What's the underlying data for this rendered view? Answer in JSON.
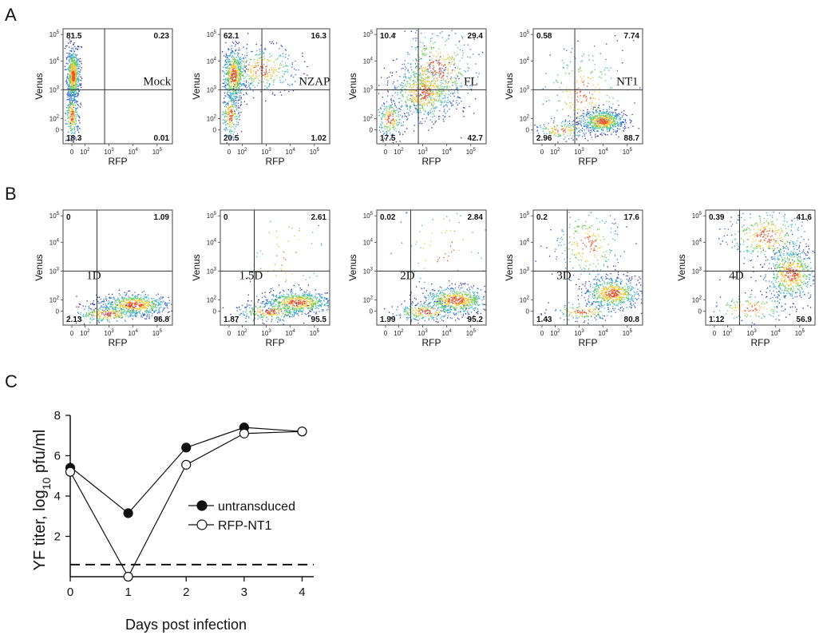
{
  "panel_labels": {
    "a": "A",
    "b": "B",
    "c": "C"
  },
  "flow_axes": {
    "xlabel": "RFP",
    "ylabel": "Venus",
    "tick_base": "10",
    "x_ticks": [
      "0",
      "2",
      "3",
      "4",
      "5"
    ],
    "y_ticks": [
      "0",
      "2",
      "3",
      "4",
      "5"
    ]
  },
  "row_a": [
    {
      "label": "Mock",
      "ul": "81.5",
      "ur": "0.23",
      "ll": "18.3",
      "lr": "0.01"
    },
    {
      "label": "NZAP",
      "ul": "62.1",
      "ur": "16.3",
      "ll": "20.5",
      "lr": "1.02"
    },
    {
      "label": "FL",
      "ul": "10.4",
      "ur": "29.4",
      "ll": "17.5",
      "lr": "42.7"
    },
    {
      "label": "NT1",
      "ul": "0.58",
      "ur": "7.74",
      "ll": "2.96",
      "lr": "88.7"
    }
  ],
  "row_b": [
    {
      "label": "1D",
      "ul": "0",
      "ur": "1.09",
      "ll": "2.13",
      "lr": "96.8"
    },
    {
      "label": "1.5D",
      "ul": "0",
      "ur": "2.61",
      "ll": "1.87",
      "lr": "95.5"
    },
    {
      "label": "2D",
      "ul": "0.02",
      "ur": "2.84",
      "ll": "1.99",
      "lr": "95.2"
    },
    {
      "label": "3D",
      "ul": "0.2",
      "ur": "17.6",
      "ll": "1.43",
      "lr": "80.8"
    },
    {
      "label": "4D",
      "ul": "0.39",
      "ur": "41.6",
      "ll": "1.12",
      "lr": "56.9"
    }
  ],
  "chart_data": {
    "type": "line",
    "xlabel": "Days post infection",
    "ylabel": "YF titer, log",
    "ylabel_sub": "10",
    "ylabel_suffix": " pfu/ml",
    "x": [
      0,
      1,
      2,
      3,
      4
    ],
    "x_ticks": [
      "0",
      "1",
      "2",
      "3",
      "4"
    ],
    "y_ticks": [
      "2",
      "4",
      "6",
      "8"
    ],
    "xlim": [
      0,
      4.2
    ],
    "ylim": [
      0,
      8
    ],
    "series": [
      {
        "name": "untransduced",
        "marker": "filled-circle",
        "values": [
          5.4,
          3.15,
          6.4,
          7.4,
          7.2
        ]
      },
      {
        "name": "RFP-NT1",
        "marker": "open-circle",
        "values": [
          5.2,
          0.0,
          5.55,
          7.1,
          7.2
        ]
      }
    ],
    "detection_limit": 0.6,
    "legend_position": "center-right"
  }
}
